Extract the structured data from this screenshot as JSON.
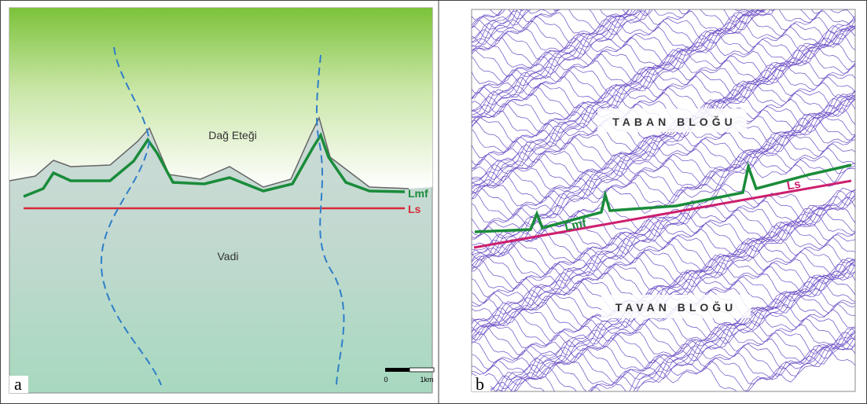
{
  "panel_a": {
    "letter": "a",
    "upland": "Dağ Eteği",
    "lmf": "Lmf",
    "ls": "Ls",
    "valley": "Vadi",
    "scale": {
      "start": "0",
      "end": "1km"
    }
  },
  "panel_b": {
    "letter": "b",
    "footwall": "TABAN BLOĞU",
    "lmf": "Lmf",
    "ls": "Ls",
    "hangingwall": "TAVAN BLOĞU"
  }
}
